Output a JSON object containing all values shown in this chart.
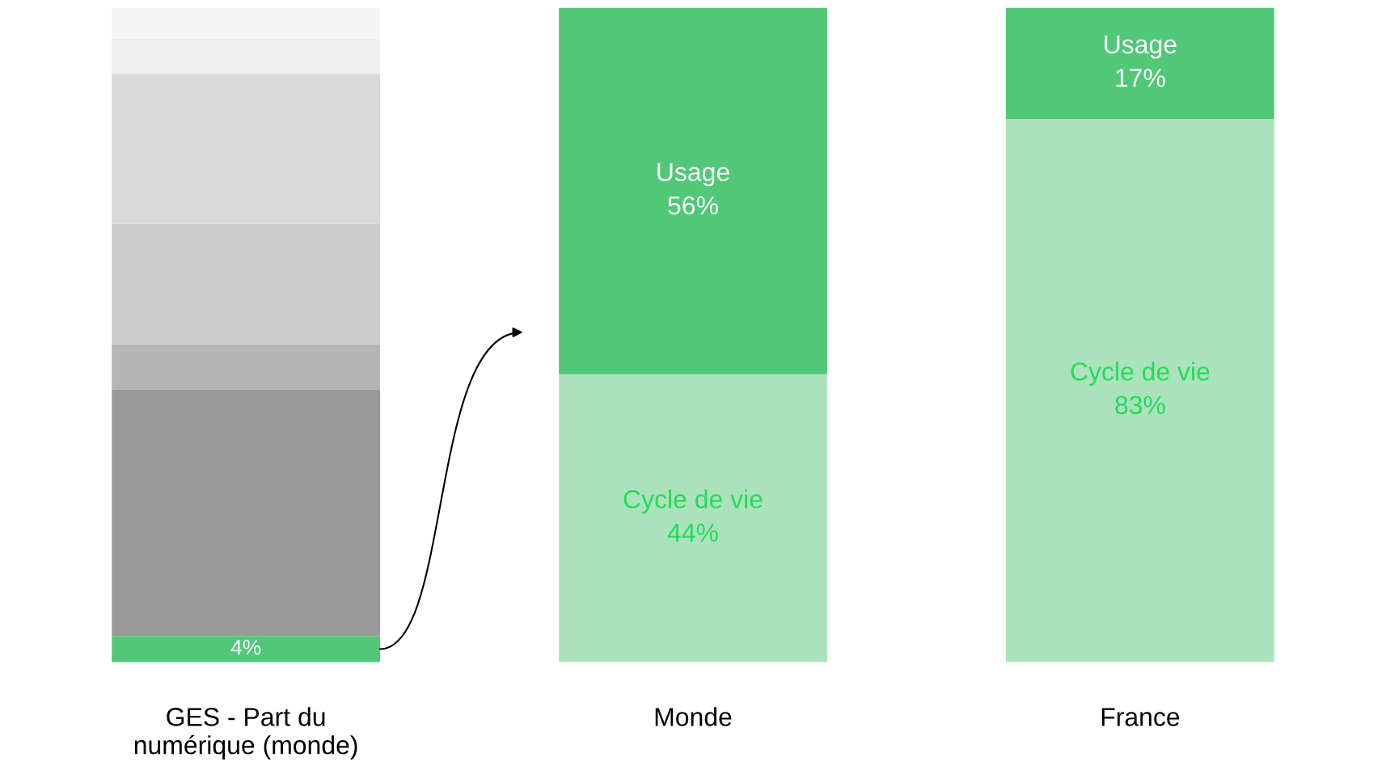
{
  "chart_data": {
    "type": "bar",
    "stacked": true,
    "legend": false,
    "grid": false,
    "tick_labels": "x",
    "ylim": [
      0,
      100
    ],
    "categories": [
      "GES - Part du\nnumérique (monde)",
      "Monde",
      "France"
    ],
    "series": [
      {
        "color": "#50c878",
        "values": [
          4,
          null,
          null
        ],
        "value_labels": [
          "4%",
          null,
          null
        ]
      },
      {
        "name": "Cycle de vie",
        "color": "#aae3bb",
        "values": [
          null,
          44,
          83
        ],
        "value_labels": [
          null,
          "44%",
          "83%"
        ]
      },
      {
        "name": "Usage",
        "color": "#50c878",
        "values": [
          null,
          56,
          17
        ],
        "value_labels": [
          null,
          "56%",
          "17%"
        ]
      },
      {
        "color": "#999999",
        "values": [
          37.6,
          null,
          null
        ]
      },
      {
        "color": "#b5b5b5",
        "values": [
          7,
          null,
          null
        ]
      },
      {
        "color": "#cccccc",
        "values": [
          18.4,
          null,
          null
        ]
      },
      {
        "color": "#d9d9d9",
        "values": [
          22.9,
          null,
          null
        ]
      },
      {
        "color": "#efefef",
        "values": [
          5.4,
          null,
          null
        ]
      },
      {
        "color": "#f5f5f5",
        "values": [
          4.6,
          null,
          null
        ]
      }
    ]
  }
}
